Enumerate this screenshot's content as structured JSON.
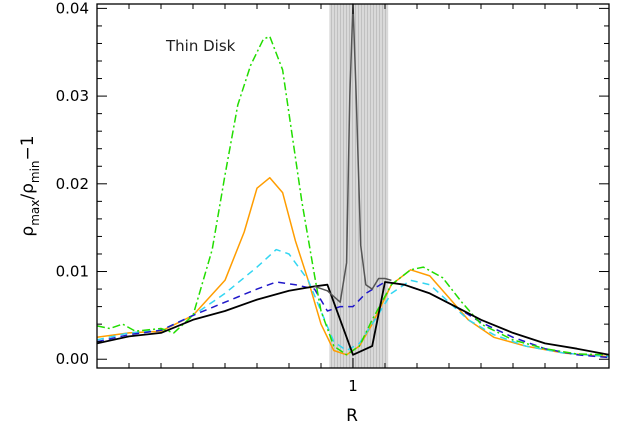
{
  "chart_data": {
    "type": "line",
    "title": "",
    "annotation": "Thin Disk",
    "xlabel": "R",
    "ylabel_main": "ρ",
    "ylabel_sub1": "max",
    "ylabel_sub2": "min",
    "ylabel_tail": "−1",
    "xlim": [
      0.6,
      1.4
    ],
    "ylim": [
      -0.001,
      0.0405
    ],
    "xticks": [
      {
        "value": 1.0,
        "label": "1"
      }
    ],
    "x_minor_ticks": [
      0.65,
      0.7,
      0.75,
      0.8,
      0.85,
      0.9,
      0.95,
      1.05,
      1.1,
      1.15,
      1.2,
      1.25,
      1.3,
      1.35
    ],
    "yticks": [
      {
        "value": 0.0,
        "label": "0.00"
      },
      {
        "value": 0.01,
        "label": "0.01"
      },
      {
        "value": 0.02,
        "label": "0.02"
      },
      {
        "value": 0.03,
        "label": "0.03"
      },
      {
        "value": 0.04,
        "label": "0.04"
      }
    ],
    "y_minor_step": 0.002,
    "grid": false,
    "legend": "none",
    "shaded_region": {
      "x0": 0.963,
      "x1": 1.055,
      "color": "#d9d9d9"
    },
    "series": [
      {
        "color": "#ff9d00",
        "dash": "solid",
        "points": [
          [
            0.6,
            0.0025
          ],
          [
            0.65,
            0.003
          ],
          [
            0.7,
            0.0032
          ],
          [
            0.75,
            0.005
          ],
          [
            0.8,
            0.009
          ],
          [
            0.83,
            0.0145
          ],
          [
            0.85,
            0.0195
          ],
          [
            0.87,
            0.0207
          ],
          [
            0.89,
            0.019
          ],
          [
            0.91,
            0.0135
          ],
          [
            0.93,
            0.009
          ],
          [
            0.95,
            0.004
          ],
          [
            0.97,
            0.001
          ],
          [
            0.99,
            0.0005
          ],
          [
            1.01,
            0.0015
          ],
          [
            1.03,
            0.004
          ],
          [
            1.06,
            0.0085
          ],
          [
            1.09,
            0.0102
          ],
          [
            1.12,
            0.0095
          ],
          [
            1.15,
            0.007
          ],
          [
            1.18,
            0.0045
          ],
          [
            1.22,
            0.0025
          ],
          [
            1.27,
            0.0015
          ],
          [
            1.33,
            0.0007
          ],
          [
            1.4,
            0.0003
          ]
        ]
      },
      {
        "color": "#33d6f2",
        "dash": "dashed",
        "points": [
          [
            0.6,
            0.0022
          ],
          [
            0.65,
            0.003
          ],
          [
            0.7,
            0.0033
          ],
          [
            0.75,
            0.005
          ],
          [
            0.8,
            0.0075
          ],
          [
            0.85,
            0.0105
          ],
          [
            0.88,
            0.0125
          ],
          [
            0.9,
            0.012
          ],
          [
            0.93,
            0.009
          ],
          [
            0.95,
            0.0055
          ],
          [
            0.97,
            0.002
          ],
          [
            0.99,
            0.001
          ],
          [
            1.01,
            0.0018
          ],
          [
            1.03,
            0.004
          ],
          [
            1.06,
            0.0075
          ],
          [
            1.09,
            0.009
          ],
          [
            1.12,
            0.0085
          ],
          [
            1.15,
            0.0065
          ],
          [
            1.18,
            0.0045
          ],
          [
            1.22,
            0.0028
          ],
          [
            1.27,
            0.0015
          ],
          [
            1.33,
            0.0007
          ],
          [
            1.4,
            0.0003
          ]
        ]
      },
      {
        "color": "#1f17c9",
        "dash": "dashed",
        "points": [
          [
            0.6,
            0.002
          ],
          [
            0.65,
            0.0028
          ],
          [
            0.7,
            0.0033
          ],
          [
            0.75,
            0.005
          ],
          [
            0.8,
            0.0065
          ],
          [
            0.85,
            0.008
          ],
          [
            0.88,
            0.0088
          ],
          [
            0.91,
            0.0085
          ],
          [
            0.94,
            0.008
          ],
          [
            0.96,
            0.0055
          ],
          [
            0.98,
            0.006
          ],
          [
            1.0,
            0.006
          ],
          [
            1.02,
            0.0075
          ],
          [
            1.05,
            0.0088
          ],
          [
            1.08,
            0.0085
          ],
          [
            1.12,
            0.0075
          ],
          [
            1.16,
            0.006
          ],
          [
            1.2,
            0.0042
          ],
          [
            1.25,
            0.0025
          ],
          [
            1.3,
            0.0012
          ],
          [
            1.35,
            0.0005
          ],
          [
            1.4,
            0.0002
          ]
        ]
      },
      {
        "color": "#22dd00",
        "dash": "dashdot",
        "points": [
          [
            0.6,
            0.0038
          ],
          [
            0.62,
            0.0035
          ],
          [
            0.64,
            0.004
          ],
          [
            0.66,
            0.0032
          ],
          [
            0.7,
            0.0035
          ],
          [
            0.72,
            0.003
          ],
          [
            0.75,
            0.005
          ],
          [
            0.78,
            0.0125
          ],
          [
            0.8,
            0.021
          ],
          [
            0.82,
            0.029
          ],
          [
            0.84,
            0.0335
          ],
          [
            0.86,
            0.0365
          ],
          [
            0.87,
            0.0368
          ],
          [
            0.89,
            0.033
          ],
          [
            0.9,
            0.028
          ],
          [
            0.92,
            0.018
          ],
          [
            0.94,
            0.0095
          ],
          [
            0.95,
            0.0055
          ],
          [
            0.97,
            0.0015
          ],
          [
            0.99,
            0.0005
          ],
          [
            1.01,
            0.0015
          ],
          [
            1.03,
            0.0045
          ],
          [
            1.06,
            0.0085
          ],
          [
            1.09,
            0.0102
          ],
          [
            1.11,
            0.0105
          ],
          [
            1.14,
            0.0093
          ],
          [
            1.17,
            0.0065
          ],
          [
            1.2,
            0.004
          ],
          [
            1.25,
            0.0022
          ],
          [
            1.3,
            0.0012
          ],
          [
            1.35,
            0.0006
          ],
          [
            1.4,
            0.0005
          ]
        ]
      },
      {
        "color": "#000000",
        "dash": "solid",
        "points": [
          [
            0.6,
            0.0018
          ],
          [
            0.65,
            0.0026
          ],
          [
            0.7,
            0.003
          ],
          [
            0.75,
            0.0045
          ],
          [
            0.8,
            0.0055
          ],
          [
            0.85,
            0.0068
          ],
          [
            0.9,
            0.0078
          ],
          [
            0.94,
            0.0083
          ],
          [
            0.96,
            0.0085
          ],
          [
            1.0,
            0.0005
          ],
          [
            1.03,
            0.0015
          ],
          [
            1.05,
            0.0088
          ],
          [
            1.08,
            0.0085
          ],
          [
            1.12,
            0.0075
          ],
          [
            1.16,
            0.006
          ],
          [
            1.2,
            0.0045
          ],
          [
            1.25,
            0.003
          ],
          [
            1.3,
            0.0018
          ],
          [
            1.35,
            0.0012
          ],
          [
            1.4,
            0.0005
          ]
        ]
      },
      {
        "color": "#555555",
        "dash": "solid",
        "points": [
          [
            0.94,
            0.0083
          ],
          [
            0.96,
            0.0078
          ],
          [
            0.98,
            0.0065
          ],
          [
            0.99,
            0.011
          ],
          [
            0.995,
            0.03
          ],
          [
            1.0,
            0.0405
          ],
          [
            1.005,
            0.03
          ],
          [
            1.012,
            0.013
          ],
          [
            1.02,
            0.0085
          ],
          [
            1.03,
            0.008
          ],
          [
            1.04,
            0.0092
          ],
          [
            1.05,
            0.0092
          ],
          [
            1.06,
            0.009
          ]
        ]
      }
    ]
  }
}
